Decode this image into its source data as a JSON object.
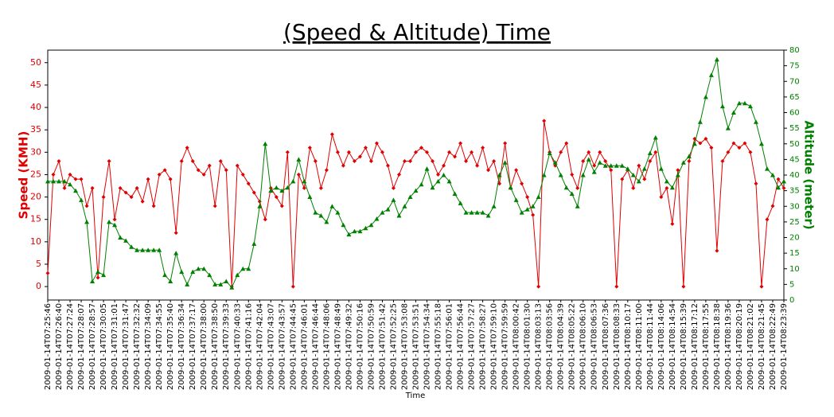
{
  "chart_data": {
    "type": "line",
    "title": "(Speed & Altitude) Time",
    "x_label": "Time",
    "y_label": "Speed (KMH)",
    "y2_label": "Altitude (meter)",
    "categories": [
      "2009-01-14T07:25:46",
      null,
      "2009-01-14T07:26:40",
      null,
      "2009-01-14T07:27:24",
      null,
      "2009-01-14T07:28:07",
      null,
      "2009-01-14T07:28:57",
      null,
      "2009-01-14T07:30:05",
      null,
      "2009-01-14T07:31:01",
      null,
      "2009-01-14T07:31:47",
      null,
      "2009-01-14T07:32:32",
      null,
      "2009-01-14T07:34:09",
      null,
      "2009-01-14T07:34:55",
      null,
      "2009-01-14T07:35:40",
      null,
      "2009-01-14T07:36:34",
      null,
      "2009-01-14T07:37:17",
      null,
      "2009-01-14T07:38:00",
      null,
      "2009-01-14T07:38:50",
      null,
      "2009-01-14T07:39:33",
      null,
      "2009-01-14T07:40:33",
      null,
      "2009-01-14T07:41:16",
      null,
      "2009-01-14T07:42:04",
      null,
      "2009-01-14T07:43:07",
      null,
      "2009-01-14T07:43:57",
      null,
      "2009-01-14T07:44:45",
      null,
      "2009-01-14T07:46:01",
      null,
      "2009-01-14T07:46:44",
      null,
      "2009-01-14T07:48:06",
      null,
      "2009-01-14T07:48:49",
      null,
      "2009-01-14T07:49:32",
      null,
      "2009-01-14T07:50:16",
      null,
      "2009-01-14T07:50:59",
      null,
      "2009-01-14T07:51:42",
      null,
      "2009-01-14T07:52:25",
      null,
      "2009-01-14T07:53:08",
      null,
      "2009-01-14T07:53:51",
      null,
      "2009-01-14T07:54:34",
      null,
      "2009-01-14T07:55:18",
      null,
      "2009-01-14T07:56:01",
      null,
      "2009-01-14T07:56:44",
      null,
      "2009-01-14T07:57:27",
      null,
      "2009-01-14T07:58:27",
      null,
      "2009-01-14T07:59:10",
      null,
      "2009-01-14T07:59:59",
      null,
      "2009-01-14T08:00:42",
      null,
      "2009-01-14T08:01:30",
      null,
      "2009-01-14T08:03:13",
      null,
      "2009-01-14T08:03:56",
      null,
      "2009-01-14T08:04:39",
      null,
      "2009-01-14T08:05:22",
      null,
      "2009-01-14T08:06:10",
      null,
      "2009-01-14T08:06:53",
      null,
      "2009-01-14T08:07:36",
      null,
      "2009-01-14T08:08:33",
      null,
      "2009-01-14T08:10:17",
      null,
      "2009-01-14T08:11:00",
      null,
      "2009-01-14T08:11:44",
      null,
      "2009-01-14T08:14:06",
      null,
      "2009-01-14T08:14:54",
      null,
      "2009-01-14T08:15:39",
      null,
      "2009-01-14T08:17:12",
      null,
      "2009-01-14T08:17:55",
      null,
      "2009-01-14T08:18:38",
      null,
      "2009-01-14T08:19:36",
      null,
      "2009-01-14T08:20:19",
      null,
      "2009-01-14T08:21:02",
      null,
      "2009-01-14T08:21:45",
      null,
      "2009-01-14T08:22:49",
      null,
      "2009-01-14T08:23:39"
    ],
    "series": [
      {
        "name": "Speed (KMH)",
        "color": "#e00000",
        "marker": "diamond",
        "values": [
          3,
          25,
          28,
          22,
          25,
          24,
          24,
          18,
          22,
          2,
          20,
          28,
          15,
          22,
          21,
          20,
          22,
          19,
          24,
          18,
          25,
          26,
          24,
          12,
          28,
          31,
          28,
          26,
          25,
          27,
          18,
          28,
          26,
          0,
          27,
          25,
          23,
          21,
          19,
          15,
          22,
          20,
          18,
          30,
          0,
          25,
          22,
          31,
          28,
          22,
          26,
          34,
          30,
          27,
          30,
          28,
          29,
          31,
          28,
          32,
          30,
          27,
          22,
          25,
          28,
          28,
          30,
          31,
          30,
          28,
          25,
          27,
          30,
          29,
          32,
          28,
          30,
          27,
          31,
          26,
          28,
          23,
          32,
          22,
          26,
          23,
          20,
          16,
          0,
          37,
          30,
          27,
          30,
          32,
          25,
          22,
          28,
          30,
          27,
          30,
          28,
          26,
          0,
          24,
          26,
          22,
          27,
          24,
          28,
          30,
          20,
          22,
          14,
          26,
          0,
          28,
          33,
          32,
          33,
          31,
          8,
          28,
          30,
          32,
          31,
          32,
          30,
          23,
          0,
          15,
          18,
          24,
          22
        ]
      },
      {
        "name": "Altitude (meter)",
        "color": "#008000",
        "marker": "triangle",
        "axis": "y2",
        "values": [
          38,
          38,
          38,
          38,
          37,
          35,
          32,
          25,
          6,
          9,
          8,
          25,
          24,
          20,
          19,
          17,
          16,
          16,
          16,
          16,
          16,
          8,
          6,
          15,
          9,
          5,
          9,
          10,
          10,
          8,
          5,
          5,
          6,
          4,
          8,
          10,
          10,
          18,
          30,
          50,
          35,
          36,
          35,
          36,
          38,
          45,
          38,
          33,
          28,
          27,
          25,
          30,
          28,
          24,
          21,
          22,
          22,
          23,
          24,
          26,
          28,
          29,
          32,
          27,
          30,
          33,
          35,
          37,
          42,
          36,
          38,
          40,
          38,
          34,
          31,
          28,
          28,
          28,
          28,
          27,
          30,
          40,
          44,
          36,
          32,
          28,
          29,
          30,
          33,
          40,
          47,
          44,
          40,
          36,
          34,
          30,
          40,
          45,
          41,
          44,
          43,
          43,
          43,
          43,
          42,
          40,
          38,
          42,
          47,
          52,
          42,
          38,
          36,
          40,
          44,
          46,
          50,
          57,
          65,
          72,
          77,
          62,
          55,
          60,
          63,
          63,
          62,
          57,
          50,
          42,
          40,
          36,
          38
        ]
      }
    ],
    "ylim": [
      -3,
      52.8
    ],
    "yticks": [
      0,
      5,
      10,
      15,
      20,
      25,
      30,
      35,
      40,
      45,
      50
    ],
    "y2lim": [
      0,
      80
    ],
    "y2ticks": [
      0,
      5,
      10,
      15,
      20,
      25,
      30,
      35,
      40,
      45,
      50,
      55,
      60,
      65,
      70,
      75,
      80
    ]
  }
}
